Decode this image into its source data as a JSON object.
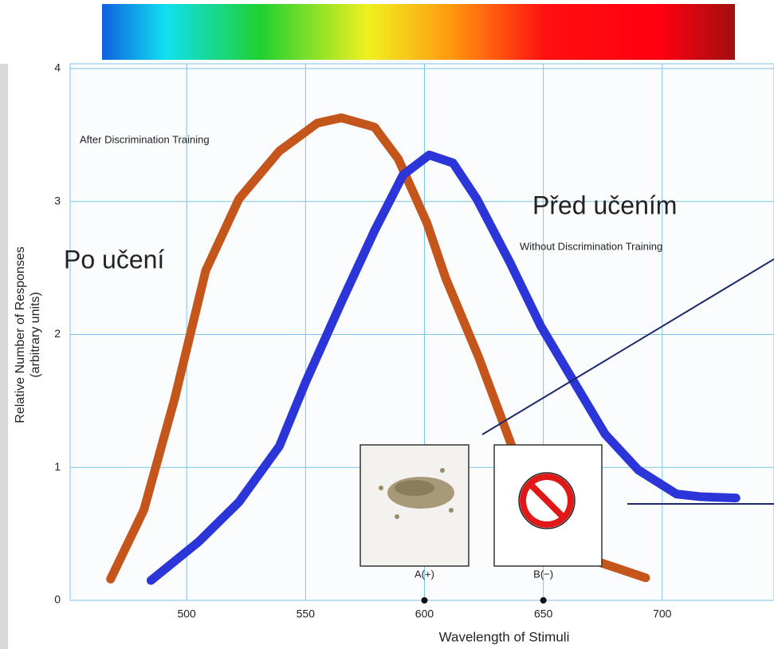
{
  "chart_data": {
    "type": "line",
    "xlabel": "Wavelength of Stimuli",
    "ylabel": [
      "Relative Number of Responses",
      "(arbitrary units)"
    ],
    "xlim": [
      451,
      747
    ],
    "ylim": [
      0,
      4
    ],
    "xticks": [
      500,
      550,
      600,
      650,
      700
    ],
    "yticks": [
      0,
      1,
      2,
      3,
      4
    ],
    "grid": true,
    "series": [
      {
        "name": "After Discrimination Training",
        "color": "#c4561c",
        "x": [
          468,
          482,
          495,
          508,
          522,
          539,
          555,
          565,
          579,
          589,
          601,
          609,
          623,
          633,
          643,
          656,
          673,
          693
        ],
        "values": [
          0.16,
          0.68,
          1.52,
          2.48,
          3.02,
          3.38,
          3.59,
          3.63,
          3.56,
          3.32,
          2.84,
          2.42,
          1.82,
          1.34,
          0.86,
          0.5,
          0.29,
          0.17
        ]
      },
      {
        "name": "Without Discrimination Training",
        "color": "#2b35d8",
        "x": [
          485,
          505,
          522,
          539,
          550,
          565,
          579,
          591,
          602,
          612,
          622,
          636,
          649,
          663,
          676,
          690,
          706,
          716,
          731
        ],
        "values": [
          0.15,
          0.44,
          0.74,
          1.16,
          1.64,
          2.24,
          2.78,
          3.2,
          3.35,
          3.29,
          3.02,
          2.54,
          2.06,
          1.64,
          1.25,
          0.98,
          0.8,
          0.78,
          0.77
        ]
      }
    ],
    "stimuli": [
      {
        "label": "A(+)",
        "x": 600
      },
      {
        "label": "B(−)",
        "x": 650
      }
    ],
    "annotations": [
      "Po učení",
      "Před učením"
    ]
  }
}
